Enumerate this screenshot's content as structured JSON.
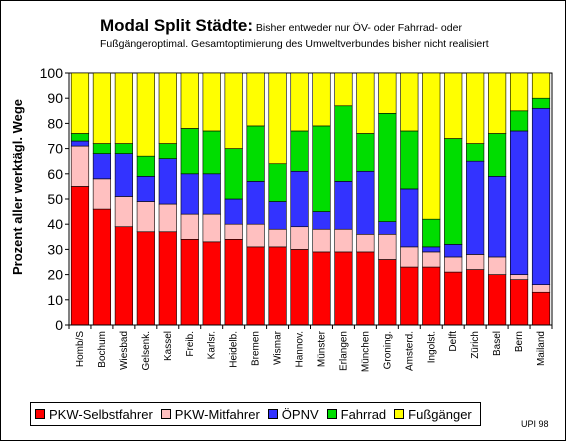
{
  "chart_data": {
    "type": "bar",
    "stacked": true,
    "title": "Modal Split Städte:",
    "subtitle": "Bisher entweder nur ÖV- oder Fahrrad- oder",
    "subtitle_line2": "Fußgängeroptimal. Gesamtoptimierung des Umweltverbundes bisher nicht realisiert",
    "ylabel": "Prozent aller werktägl. Wege",
    "xlabel": "",
    "ylim": [
      0,
      100
    ],
    "yticks": [
      0,
      10,
      20,
      30,
      40,
      50,
      60,
      70,
      80,
      90,
      100
    ],
    "grid": false,
    "legend_position": "bottom",
    "categories": [
      "Homb/S",
      "Bochum",
      "Wiesbad",
      "Gelsenk.",
      "Kassel",
      "Freib.",
      "Karlsr.",
      "Heidelb.",
      "Bremen",
      "Wismar",
      "Hannov.",
      "Münster",
      "Erlangen",
      "München",
      "Groning.",
      "Amsterd.",
      "Ingolst.",
      "Delft",
      "Zürich",
      "Basel",
      "Bern",
      "Mailand"
    ],
    "series": [
      {
        "name": "PKW-Selbstfahrer",
        "color": "#ff0000",
        "values": [
          55,
          46,
          39,
          37,
          37,
          34,
          33,
          34,
          31,
          31,
          30,
          29,
          29,
          29,
          26,
          23,
          23,
          21,
          22,
          20,
          18,
          13
        ]
      },
      {
        "name": "PKW-Mitfahrer",
        "color": "#ffc0c0",
        "values": [
          16,
          12,
          12,
          12,
          11,
          10,
          11,
          6,
          9,
          7,
          9,
          9,
          9,
          7,
          10,
          8,
          6,
          6,
          6,
          7,
          2,
          3
        ]
      },
      {
        "name": "ÖPNV",
        "color": "#3333ff",
        "values": [
          2,
          10,
          17,
          10,
          18,
          16,
          16,
          10,
          17,
          11,
          22,
          7,
          19,
          25,
          5,
          23,
          2,
          5,
          37,
          32,
          57,
          70
        ]
      },
      {
        "name": "Fahrrad",
        "color": "#00dd00",
        "values": [
          3,
          4,
          4,
          8,
          6,
          18,
          17,
          20,
          22,
          15,
          16,
          34,
          30,
          15,
          43,
          23,
          11,
          42,
          7,
          17,
          8,
          4
        ]
      },
      {
        "name": "Fußgänger",
        "color": "#ffff00",
        "values": [
          24,
          28,
          28,
          33,
          28,
          22,
          23,
          30,
          21,
          36,
          23,
          21,
          13,
          24,
          16,
          23,
          58,
          26,
          28,
          24,
          15,
          10
        ]
      }
    ],
    "source": "UPI 98"
  }
}
